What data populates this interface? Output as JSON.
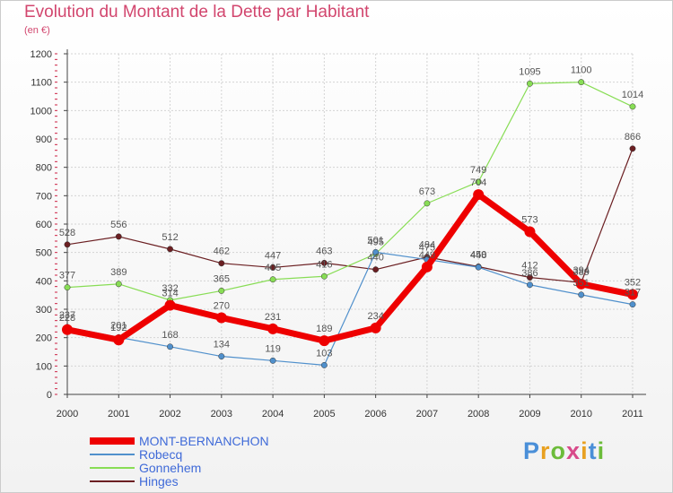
{
  "header": {
    "title": "Evolution du Montant de la Dette par Habitant",
    "subtitle": "(en €)"
  },
  "logo": {
    "letters": [
      "P",
      "r",
      "o",
      "x",
      "i",
      "t",
      "i"
    ],
    "colors": [
      "#4a8fd8",
      "#e8a020",
      "#6cbc3a",
      "#d84a8a",
      "#e8a020",
      "#4a8fd8",
      "#6cbc3a"
    ]
  },
  "chart_data": {
    "type": "line",
    "x": [
      "2000",
      "2001",
      "2002",
      "2003",
      "2004",
      "2005",
      "2006",
      "2007",
      "2008",
      "2009",
      "2010",
      "2011"
    ],
    "ylim": [
      0,
      1200
    ],
    "yticks": [
      0,
      100,
      200,
      300,
      400,
      500,
      600,
      700,
      800,
      900,
      1000,
      1100,
      1200
    ],
    "grid": true,
    "legend_position": "bottom-left",
    "series": [
      {
        "name": "MONT-BERNANCHON",
        "color": "#ee0000",
        "values": [
          228,
          192,
          314,
          270,
          231,
          189,
          234,
          449,
          704,
          573,
          389,
          352
        ]
      },
      {
        "name": "Robecq",
        "color": "#5090cc",
        "values": [
          237,
          201,
          168,
          134,
          119,
          103,
          501,
          475,
          448,
          386,
          351,
          317
        ]
      },
      {
        "name": "Gonnehem",
        "color": "#88dd55",
        "values": [
          377,
          389,
          332,
          365,
          405,
          416,
          495,
          673,
          749,
          1095,
          1100,
          1014
        ]
      },
      {
        "name": "Hinges",
        "color": "#6b1f22",
        "values": [
          528,
          556,
          512,
          462,
          447,
          463,
          440,
          484,
          450,
          412,
          394,
          866
        ]
      }
    ]
  }
}
